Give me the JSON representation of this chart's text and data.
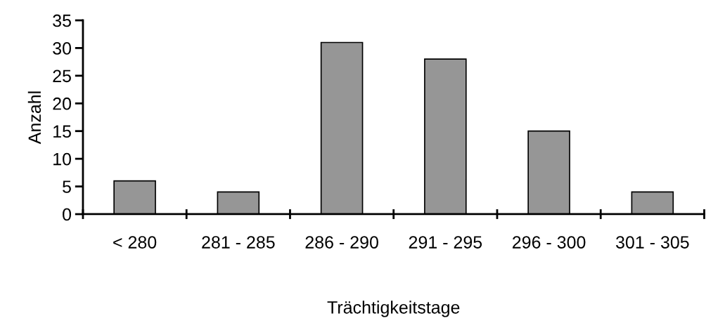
{
  "chart_data": {
    "type": "bar",
    "xlabel": "Trächtigkeitstage",
    "ylabel": "Anzahl",
    "categories": [
      "< 280",
      "281 - 285",
      "286 - 290",
      "291 - 295",
      "296 - 300",
      "301 - 305"
    ],
    "values": [
      6,
      4,
      31,
      28,
      15,
      4
    ],
    "color": "#969696",
    "ylim": [
      0,
      35
    ],
    "yticks": [
      0,
      5,
      10,
      15,
      20,
      25,
      30,
      35
    ],
    "grid": false,
    "legend": false
  }
}
